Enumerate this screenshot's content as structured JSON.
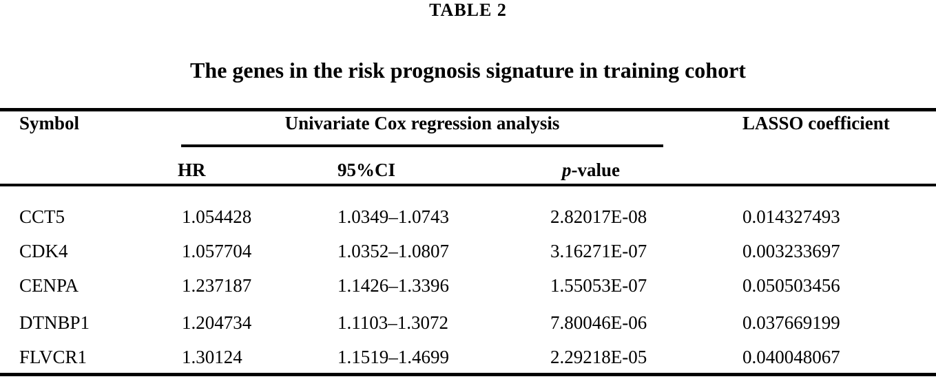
{
  "caption": {
    "label": "TABLE 2",
    "title": "The genes in the risk prognosis signature in training cohort"
  },
  "table": {
    "headers": {
      "symbol": "Symbol",
      "group": "Univariate Cox regression analysis",
      "hr": "HR",
      "ci": "95%CI",
      "p_italic": "p",
      "p_rest": "-value",
      "lasso": "LASSO coefficient"
    },
    "rows": [
      {
        "symbol": "CCT5",
        "hr": "1.054428",
        "ci": "1.0349–1.0743",
        "p": "2.82017E-08",
        "lasso": "0.014327493"
      },
      {
        "symbol": "CDK4",
        "hr": "1.057704",
        "ci": "1.0352–1.0807",
        "p": "3.16271E-07",
        "lasso": "0.003233697"
      },
      {
        "symbol": "CENPA",
        "hr": "1.237187",
        "ci": "1.1426–1.3396",
        "p": "1.55053E-07",
        "lasso": "0.050503456"
      },
      {
        "symbol": "DTNBP1",
        "hr": "1.204734",
        "ci": "1.1103–1.3072",
        "p": "7.80046E-06",
        "lasso": "0.037669199"
      },
      {
        "symbol": "FLVCR1",
        "hr": "1.30124",
        "ci": "1.1519–1.4699",
        "p": "2.29218E-05",
        "lasso": "0.040048067"
      }
    ]
  },
  "colors": {
    "background": "#ffffff",
    "text": "#000000",
    "rule": "#000000"
  }
}
